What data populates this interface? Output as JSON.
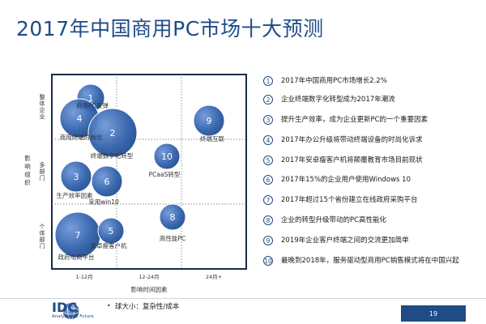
{
  "title": "2017年中国商用PC市场十大预测",
  "chart_data": {
    "type": "bubble",
    "x_axis": {
      "title": "影响时间因素",
      "ticks": [
        "1-12月",
        "12-24月",
        "24月+"
      ]
    },
    "y_axis": {
      "title": "影响组织",
      "ticks": [
        "整体企业",
        "多部门",
        "个体部门"
      ]
    },
    "size_legend": "球大小：复杂性/成本",
    "bubbles": [
      {
        "id": "1",
        "label": "商用PC反弹",
        "x_band": 0,
        "y_band": 0,
        "size": "medium"
      },
      {
        "id": "4",
        "label": "商用终端时尚化",
        "x_band": 0,
        "y_band": 0,
        "size": "medium"
      },
      {
        "id": "2",
        "label": "终端数字化转型",
        "x_band": 0,
        "y_band": 0,
        "size": "large"
      },
      {
        "id": "9",
        "label": "终端互联",
        "x_band": 2,
        "y_band": 0,
        "size": "medium"
      },
      {
        "id": "10",
        "label": "PCaaS转型",
        "x_band": 1,
        "y_band": 1,
        "size": "small"
      },
      {
        "id": "3",
        "label": "生产效率因素",
        "x_band": 0,
        "y_band": 1,
        "size": "medium"
      },
      {
        "id": "6",
        "label": "采用win10",
        "x_band": 0,
        "y_band": 1,
        "size": "medium"
      },
      {
        "id": "7",
        "label": "政府电商平台",
        "x_band": 0,
        "y_band": 2,
        "size": "large"
      },
      {
        "id": "5",
        "label": "安卓瘦客户机",
        "x_band": 0,
        "y_band": 2,
        "size": "small"
      },
      {
        "id": "8",
        "label": "高性能PC",
        "x_band": 1,
        "y_band": 2,
        "size": "small"
      }
    ]
  },
  "legend_items": [
    {
      "num": "1",
      "text": "2017年中国商用PC市场增长2.2%"
    },
    {
      "num": "2",
      "text": "企业终端数字化转型成为2017年潮流"
    },
    {
      "num": "3",
      "text": "提升生产效率，成为企业更新PC的一个重要因素"
    },
    {
      "num": "4",
      "text": "2017年办公升级将带动终端设备的时尚化诉求"
    },
    {
      "num": "5",
      "text": "2017年安卓瘦客户机将颠覆教育市场目前现状"
    },
    {
      "num": "6",
      "text": "2017年15%的企业用户使用Windows 10"
    },
    {
      "num": "7",
      "text": "2017年超过15个省份建立在线政府采购平台"
    },
    {
      "num": "8",
      "text": "企业的转型升级带动的PC高性能化"
    },
    {
      "num": "9",
      "text": "2019年企业客户终端之间的交流更加简单"
    },
    {
      "num": "10",
      "text": "最晚到2018年，服务驱动型商用PC销售模式将在中国兴起"
    }
  ],
  "footer": {
    "logo_text": "IDC",
    "tagline": "Analyze the Future",
    "bullet": "•",
    "footnote": "球大小：复杂性/成本",
    "page_number": "19"
  },
  "colors": {
    "title": "#1f4b86",
    "bubble": "#2e5ea8",
    "grid_frame": "#1a2a4a",
    "footer_box": "#1f4b86"
  }
}
